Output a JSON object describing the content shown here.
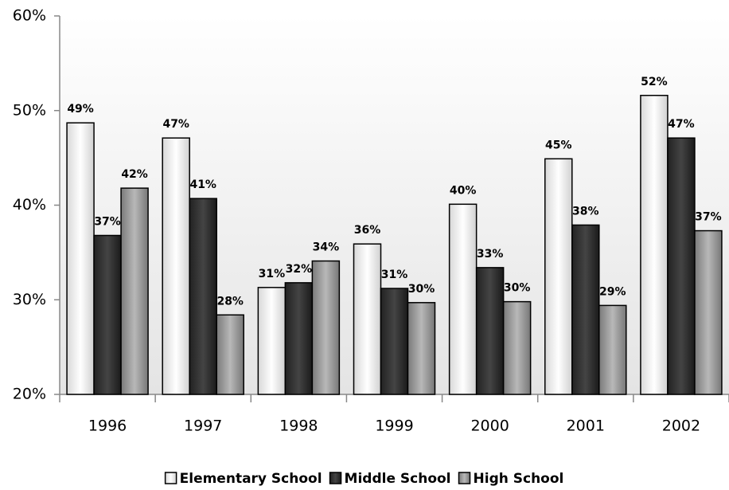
{
  "chart_data": {
    "type": "bar",
    "categories": [
      "1996",
      "1997",
      "1998",
      "1999",
      "2000",
      "2001",
      "2002"
    ],
    "series": [
      {
        "name": "Elementary School",
        "color": "#ffffff",
        "values": [
          48.7,
          47.1,
          31.3,
          35.9,
          40.1,
          44.9,
          51.6
        ],
        "value_labels": [
          "49%",
          "47%",
          "31%",
          "36%",
          "40%",
          "45%",
          "52%"
        ]
      },
      {
        "name": "Middle School",
        "color": "#333333",
        "values": [
          36.8,
          40.7,
          31.8,
          31.2,
          33.4,
          37.9,
          47.1
        ],
        "value_labels": [
          "37%",
          "41%",
          "32%",
          "31%",
          "33%",
          "38%",
          "47%"
        ]
      },
      {
        "name": "High School",
        "color": "#999999",
        "values": [
          41.8,
          28.4,
          34.1,
          29.7,
          29.8,
          29.4,
          37.3
        ],
        "value_labels": [
          "42%",
          "28%",
          "34%",
          "30%",
          "30%",
          "29%",
          "37%"
        ]
      }
    ],
    "ylim": [
      20,
      60
    ],
    "yticks": [
      {
        "value": 20,
        "label": "20%"
      },
      {
        "value": 30,
        "label": "30%"
      },
      {
        "value": 40,
        "label": "40%"
      },
      {
        "value": 50,
        "label": "50%"
      },
      {
        "value": 60,
        "label": "60%"
      }
    ],
    "legend": "bottom"
  }
}
